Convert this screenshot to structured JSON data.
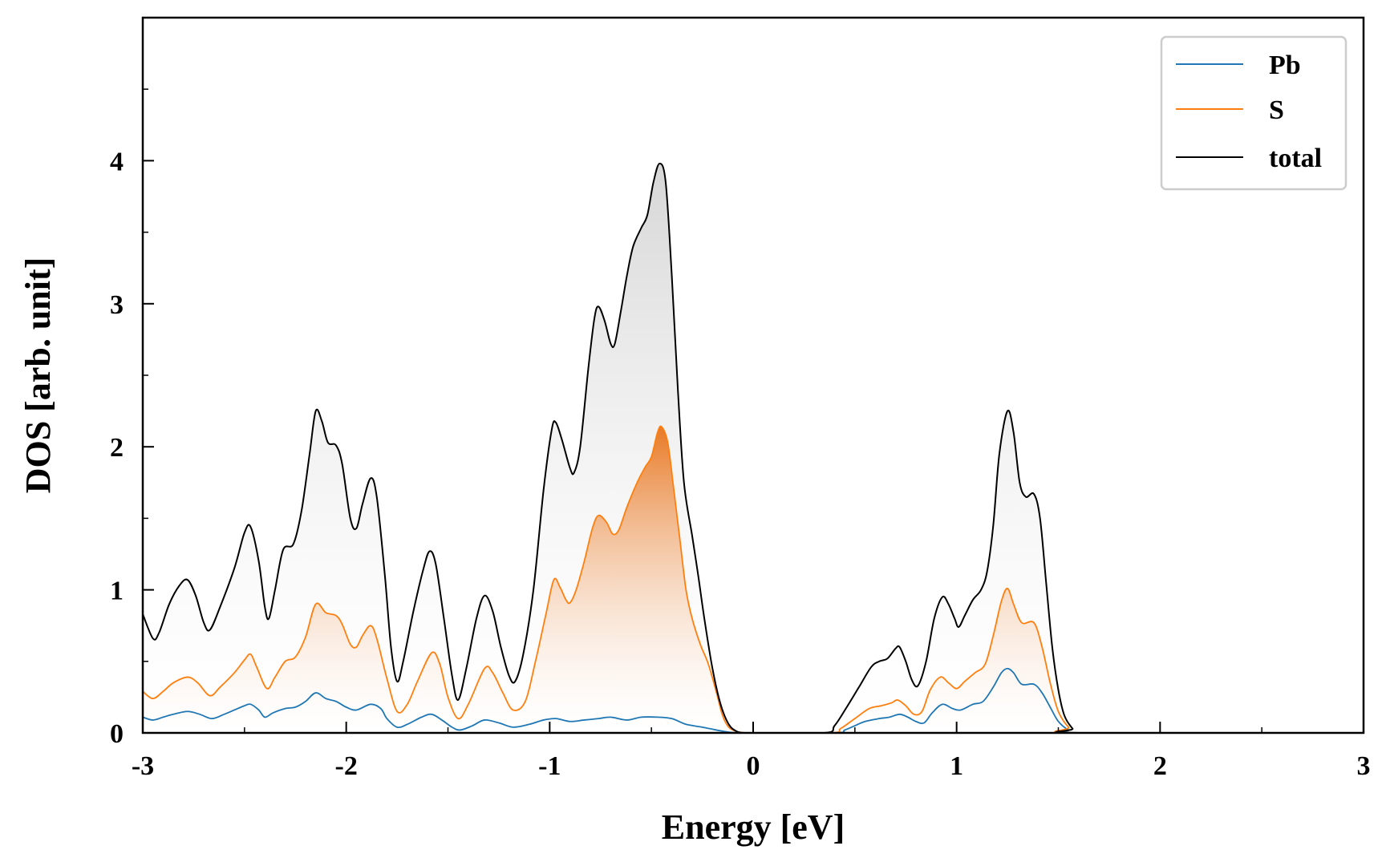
{
  "chart_data": {
    "type": "line",
    "title": "",
    "xlabel": "Energy [eV]",
    "ylabel": "DOS [arb. unit]",
    "xlim": [
      -3,
      3
    ],
    "ylim": [
      0,
      5
    ],
    "xticks": [
      -3,
      -2,
      -1,
      0,
      1,
      2,
      3
    ],
    "xtick_labels": [
      "-3",
      "-2",
      "-1",
      "0",
      "1",
      "2",
      "3"
    ],
    "yticks": [
      0,
      1,
      2,
      3,
      4
    ],
    "ytick_labels": [
      "0",
      "1",
      "2",
      "3",
      "4"
    ],
    "legend_position": "top-right",
    "series": [
      {
        "name": "Pb",
        "color": "#1f77b4",
        "fill": false,
        "points": [
          [
            -3.0,
            0.11
          ],
          [
            -2.95,
            0.09
          ],
          [
            -2.9,
            0.11
          ],
          [
            -2.85,
            0.13
          ],
          [
            -2.78,
            0.15
          ],
          [
            -2.72,
            0.13
          ],
          [
            -2.66,
            0.1
          ],
          [
            -2.6,
            0.13
          ],
          [
            -2.55,
            0.16
          ],
          [
            -2.5,
            0.19
          ],
          [
            -2.47,
            0.2
          ],
          [
            -2.43,
            0.16
          ],
          [
            -2.4,
            0.11
          ],
          [
            -2.36,
            0.14
          ],
          [
            -2.3,
            0.17
          ],
          [
            -2.25,
            0.18
          ],
          [
            -2.2,
            0.22
          ],
          [
            -2.15,
            0.28
          ],
          [
            -2.1,
            0.24
          ],
          [
            -2.05,
            0.22
          ],
          [
            -2.0,
            0.18
          ],
          [
            -1.95,
            0.16
          ],
          [
            -1.88,
            0.2
          ],
          [
            -1.83,
            0.17
          ],
          [
            -1.8,
            0.1
          ],
          [
            -1.75,
            0.04
          ],
          [
            -1.7,
            0.06
          ],
          [
            -1.63,
            0.11
          ],
          [
            -1.58,
            0.13
          ],
          [
            -1.53,
            0.09
          ],
          [
            -1.48,
            0.04
          ],
          [
            -1.44,
            0.02
          ],
          [
            -1.38,
            0.05
          ],
          [
            -1.32,
            0.09
          ],
          [
            -1.25,
            0.07
          ],
          [
            -1.18,
            0.04
          ],
          [
            -1.1,
            0.06
          ],
          [
            -1.03,
            0.09
          ],
          [
            -0.97,
            0.1
          ],
          [
            -0.9,
            0.08
          ],
          [
            -0.83,
            0.09
          ],
          [
            -0.76,
            0.1
          ],
          [
            -0.7,
            0.11
          ],
          [
            -0.62,
            0.09
          ],
          [
            -0.55,
            0.11
          ],
          [
            -0.47,
            0.11
          ],
          [
            -0.4,
            0.1
          ],
          [
            -0.33,
            0.06
          ],
          [
            -0.25,
            0.04
          ],
          [
            -0.18,
            0.02
          ],
          [
            -0.12,
            0.005
          ],
          [
            -0.06,
            0.0
          ],
          [
            0.0,
            0.0
          ],
          [
            0.4,
            0.0
          ],
          [
            0.45,
            0.02
          ],
          [
            0.5,
            0.05
          ],
          [
            0.55,
            0.08
          ],
          [
            0.62,
            0.1
          ],
          [
            0.67,
            0.11
          ],
          [
            0.72,
            0.13
          ],
          [
            0.76,
            0.11
          ],
          [
            0.8,
            0.08
          ],
          [
            0.84,
            0.07
          ],
          [
            0.88,
            0.14
          ],
          [
            0.93,
            0.2
          ],
          [
            0.98,
            0.17
          ],
          [
            1.02,
            0.16
          ],
          [
            1.08,
            0.2
          ],
          [
            1.13,
            0.22
          ],
          [
            1.18,
            0.32
          ],
          [
            1.22,
            0.42
          ],
          [
            1.25,
            0.45
          ],
          [
            1.28,
            0.42
          ],
          [
            1.32,
            0.34
          ],
          [
            1.38,
            0.34
          ],
          [
            1.42,
            0.28
          ],
          [
            1.46,
            0.18
          ],
          [
            1.5,
            0.08
          ],
          [
            1.55,
            0.02
          ],
          [
            1.6,
            0.0
          ],
          [
            3.0,
            0.0
          ]
        ]
      },
      {
        "name": "S",
        "color": "#ff7f0e",
        "fill": true,
        "points": [
          [
            -3.0,
            0.29
          ],
          [
            -2.95,
            0.24
          ],
          [
            -2.9,
            0.29
          ],
          [
            -2.85,
            0.35
          ],
          [
            -2.78,
            0.39
          ],
          [
            -2.73,
            0.35
          ],
          [
            -2.67,
            0.26
          ],
          [
            -2.62,
            0.32
          ],
          [
            -2.55,
            0.42
          ],
          [
            -2.5,
            0.51
          ],
          [
            -2.47,
            0.55
          ],
          [
            -2.44,
            0.46
          ],
          [
            -2.39,
            0.31
          ],
          [
            -2.35,
            0.39
          ],
          [
            -2.3,
            0.5
          ],
          [
            -2.25,
            0.53
          ],
          [
            -2.2,
            0.67
          ],
          [
            -2.15,
            0.9
          ],
          [
            -2.1,
            0.84
          ],
          [
            -2.05,
            0.82
          ],
          [
            -2.02,
            0.76
          ],
          [
            -1.98,
            0.62
          ],
          [
            -1.95,
            0.6
          ],
          [
            -1.92,
            0.68
          ],
          [
            -1.88,
            0.75
          ],
          [
            -1.85,
            0.66
          ],
          [
            -1.8,
            0.38
          ],
          [
            -1.75,
            0.15
          ],
          [
            -1.7,
            0.2
          ],
          [
            -1.65,
            0.36
          ],
          [
            -1.58,
            0.56
          ],
          [
            -1.54,
            0.48
          ],
          [
            -1.5,
            0.25
          ],
          [
            -1.45,
            0.1
          ],
          [
            -1.4,
            0.2
          ],
          [
            -1.32,
            0.45
          ],
          [
            -1.28,
            0.42
          ],
          [
            -1.23,
            0.28
          ],
          [
            -1.18,
            0.16
          ],
          [
            -1.12,
            0.22
          ],
          [
            -1.07,
            0.5
          ],
          [
            -1.02,
            0.82
          ],
          [
            -0.98,
            1.07
          ],
          [
            -0.95,
            1.02
          ],
          [
            -0.92,
            0.93
          ],
          [
            -0.9,
            0.91
          ],
          [
            -0.87,
            1.0
          ],
          [
            -0.83,
            1.2
          ],
          [
            -0.79,
            1.43
          ],
          [
            -0.76,
            1.52
          ],
          [
            -0.72,
            1.47
          ],
          [
            -0.69,
            1.39
          ],
          [
            -0.66,
            1.42
          ],
          [
            -0.62,
            1.58
          ],
          [
            -0.57,
            1.75
          ],
          [
            -0.53,
            1.86
          ],
          [
            -0.5,
            1.93
          ],
          [
            -0.47,
            2.1
          ],
          [
            -0.45,
            2.14
          ],
          [
            -0.42,
            2.03
          ],
          [
            -0.39,
            1.7
          ],
          [
            -0.36,
            1.35
          ],
          [
            -0.33,
            1.0
          ],
          [
            -0.3,
            0.8
          ],
          [
            -0.26,
            0.62
          ],
          [
            -0.22,
            0.48
          ],
          [
            -0.18,
            0.28
          ],
          [
            -0.15,
            0.12
          ],
          [
            -0.12,
            0.04
          ],
          [
            -0.08,
            0.01
          ],
          [
            -0.04,
            0.0
          ],
          [
            0.0,
            0.0
          ],
          [
            0.38,
            0.0
          ],
          [
            0.43,
            0.03
          ],
          [
            0.5,
            0.1
          ],
          [
            0.57,
            0.17
          ],
          [
            0.63,
            0.19
          ],
          [
            0.68,
            0.21
          ],
          [
            0.71,
            0.23
          ],
          [
            0.75,
            0.19
          ],
          [
            0.79,
            0.13
          ],
          [
            0.83,
            0.15
          ],
          [
            0.87,
            0.3
          ],
          [
            0.92,
            0.39
          ],
          [
            0.96,
            0.35
          ],
          [
            1.0,
            0.31
          ],
          [
            1.04,
            0.36
          ],
          [
            1.09,
            0.42
          ],
          [
            1.14,
            0.48
          ],
          [
            1.18,
            0.68
          ],
          [
            1.22,
            0.92
          ],
          [
            1.25,
            1.01
          ],
          [
            1.28,
            0.9
          ],
          [
            1.32,
            0.77
          ],
          [
            1.38,
            0.77
          ],
          [
            1.42,
            0.6
          ],
          [
            1.46,
            0.35
          ],
          [
            1.5,
            0.15
          ],
          [
            1.55,
            0.04
          ],
          [
            1.6,
            0.0
          ],
          [
            3.0,
            0.0
          ]
        ]
      },
      {
        "name": "total",
        "color": "#000000",
        "fill": true,
        "points": [
          [
            -3.0,
            0.83
          ],
          [
            -2.95,
            0.66
          ],
          [
            -2.92,
            0.7
          ],
          [
            -2.87,
            0.9
          ],
          [
            -2.82,
            1.03
          ],
          [
            -2.78,
            1.07
          ],
          [
            -2.74,
            0.96
          ],
          [
            -2.7,
            0.77
          ],
          [
            -2.67,
            0.72
          ],
          [
            -2.62,
            0.88
          ],
          [
            -2.55,
            1.15
          ],
          [
            -2.5,
            1.4
          ],
          [
            -2.47,
            1.44
          ],
          [
            -2.43,
            1.2
          ],
          [
            -2.4,
            0.88
          ],
          [
            -2.38,
            0.8
          ],
          [
            -2.35,
            1.0
          ],
          [
            -2.31,
            1.28
          ],
          [
            -2.26,
            1.32
          ],
          [
            -2.22,
            1.55
          ],
          [
            -2.18,
            1.95
          ],
          [
            -2.15,
            2.25
          ],
          [
            -2.12,
            2.18
          ],
          [
            -2.09,
            2.03
          ],
          [
            -2.05,
            2.01
          ],
          [
            -2.02,
            1.88
          ],
          [
            -1.98,
            1.5
          ],
          [
            -1.95,
            1.43
          ],
          [
            -1.92,
            1.6
          ],
          [
            -1.88,
            1.78
          ],
          [
            -1.85,
            1.65
          ],
          [
            -1.81,
            1.1
          ],
          [
            -1.78,
            0.6
          ],
          [
            -1.75,
            0.36
          ],
          [
            -1.72,
            0.5
          ],
          [
            -1.67,
            0.85
          ],
          [
            -1.62,
            1.15
          ],
          [
            -1.59,
            1.27
          ],
          [
            -1.56,
            1.18
          ],
          [
            -1.52,
            0.8
          ],
          [
            -1.48,
            0.4
          ],
          [
            -1.45,
            0.23
          ],
          [
            -1.41,
            0.45
          ],
          [
            -1.36,
            0.8
          ],
          [
            -1.32,
            0.96
          ],
          [
            -1.28,
            0.85
          ],
          [
            -1.24,
            0.6
          ],
          [
            -1.2,
            0.4
          ],
          [
            -1.17,
            0.36
          ],
          [
            -1.13,
            0.55
          ],
          [
            -1.08,
            1.0
          ],
          [
            -1.03,
            1.7
          ],
          [
            -0.99,
            2.12
          ],
          [
            -0.97,
            2.17
          ],
          [
            -0.94,
            2.05
          ],
          [
            -0.9,
            1.85
          ],
          [
            -0.88,
            1.82
          ],
          [
            -0.85,
            2.0
          ],
          [
            -0.81,
            2.55
          ],
          [
            -0.78,
            2.9
          ],
          [
            -0.76,
            2.98
          ],
          [
            -0.73,
            2.88
          ],
          [
            -0.7,
            2.72
          ],
          [
            -0.68,
            2.72
          ],
          [
            -0.65,
            2.95
          ],
          [
            -0.62,
            3.2
          ],
          [
            -0.59,
            3.4
          ],
          [
            -0.55,
            3.53
          ],
          [
            -0.52,
            3.62
          ],
          [
            -0.49,
            3.85
          ],
          [
            -0.46,
            3.98
          ],
          [
            -0.43,
            3.85
          ],
          [
            -0.4,
            3.2
          ],
          [
            -0.37,
            2.4
          ],
          [
            -0.34,
            1.75
          ],
          [
            -0.3,
            1.38
          ],
          [
            -0.27,
            1.1
          ],
          [
            -0.24,
            0.8
          ],
          [
            -0.2,
            0.45
          ],
          [
            -0.16,
            0.2
          ],
          [
            -0.12,
            0.06
          ],
          [
            -0.08,
            0.01
          ],
          [
            -0.04,
            0.0
          ],
          [
            0.0,
            0.0
          ],
          [
            0.35,
            0.0
          ],
          [
            0.4,
            0.05
          ],
          [
            0.46,
            0.18
          ],
          [
            0.52,
            0.32
          ],
          [
            0.58,
            0.46
          ],
          [
            0.62,
            0.5
          ],
          [
            0.66,
            0.52
          ],
          [
            0.7,
            0.59
          ],
          [
            0.72,
            0.6
          ],
          [
            0.75,
            0.5
          ],
          [
            0.78,
            0.37
          ],
          [
            0.81,
            0.33
          ],
          [
            0.85,
            0.5
          ],
          [
            0.89,
            0.8
          ],
          [
            0.93,
            0.95
          ],
          [
            0.96,
            0.9
          ],
          [
            0.99,
            0.8
          ],
          [
            1.01,
            0.74
          ],
          [
            1.04,
            0.82
          ],
          [
            1.08,
            0.93
          ],
          [
            1.12,
            1.0
          ],
          [
            1.15,
            1.13
          ],
          [
            1.18,
            1.45
          ],
          [
            1.21,
            1.95
          ],
          [
            1.25,
            2.25
          ],
          [
            1.28,
            2.1
          ],
          [
            1.31,
            1.75
          ],
          [
            1.34,
            1.65
          ],
          [
            1.38,
            1.67
          ],
          [
            1.41,
            1.5
          ],
          [
            1.44,
            1.05
          ],
          [
            1.47,
            0.6
          ],
          [
            1.5,
            0.3
          ],
          [
            1.53,
            0.12
          ],
          [
            1.57,
            0.03
          ],
          [
            1.6,
            0.0
          ],
          [
            3.0,
            0.0
          ]
        ]
      }
    ]
  }
}
